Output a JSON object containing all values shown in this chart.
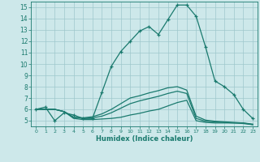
{
  "xlabel": "Humidex (Indice chaleur)",
  "xlim": [
    -0.5,
    23.5
  ],
  "ylim": [
    4.5,
    15.5
  ],
  "yticks": [
    5,
    6,
    7,
    8,
    9,
    10,
    11,
    12,
    13,
    14,
    15
  ],
  "xticks": [
    0,
    1,
    2,
    3,
    4,
    5,
    6,
    7,
    8,
    9,
    10,
    11,
    12,
    13,
    14,
    15,
    16,
    17,
    18,
    19,
    20,
    21,
    22,
    23
  ],
  "background_color": "#cde8ea",
  "line_color": "#1a7a6e",
  "grid_color": "#9ec8cc",
  "lines": [
    {
      "x": [
        0,
        1,
        2,
        3,
        4,
        5,
        6,
        7,
        8,
        9,
        10,
        11,
        12,
        13,
        14,
        15,
        16,
        17,
        18,
        19,
        20,
        21,
        22,
        23
      ],
      "y": [
        6.0,
        6.2,
        5.0,
        5.7,
        5.5,
        5.2,
        5.2,
        7.5,
        9.8,
        11.1,
        12.0,
        12.9,
        13.3,
        12.6,
        13.9,
        15.2,
        15.2,
        14.2,
        11.5,
        8.5,
        8.0,
        7.3,
        6.0,
        5.2
      ],
      "marker": "+"
    },
    {
      "x": [
        0,
        1,
        2,
        3,
        4,
        5,
        6,
        7,
        8,
        9,
        10,
        11,
        12,
        13,
        14,
        15,
        16,
        17,
        18,
        19,
        20,
        21,
        22,
        23
      ],
      "y": [
        6.0,
        6.0,
        6.0,
        5.8,
        5.2,
        5.1,
        5.1,
        5.15,
        5.2,
        5.3,
        5.5,
        5.65,
        5.85,
        6.0,
        6.3,
        6.6,
        6.8,
        5.0,
        4.85,
        4.8,
        4.8,
        4.8,
        4.8,
        4.7
      ],
      "marker": null
    },
    {
      "x": [
        0,
        1,
        2,
        3,
        4,
        5,
        6,
        7,
        8,
        9,
        10,
        11,
        12,
        13,
        14,
        15,
        16,
        17,
        18,
        19,
        20,
        21,
        22,
        23
      ],
      "y": [
        6.0,
        6.0,
        6.0,
        5.8,
        5.3,
        5.2,
        5.25,
        5.4,
        5.7,
        6.1,
        6.5,
        6.75,
        6.95,
        7.15,
        7.4,
        7.6,
        7.4,
        5.2,
        4.95,
        4.9,
        4.85,
        4.8,
        4.75,
        4.65
      ],
      "marker": null
    },
    {
      "x": [
        0,
        1,
        2,
        3,
        4,
        5,
        6,
        7,
        8,
        9,
        10,
        11,
        12,
        13,
        14,
        15,
        16,
        17,
        18,
        19,
        20,
        21,
        22,
        23
      ],
      "y": [
        6.0,
        6.0,
        6.0,
        5.8,
        5.3,
        5.25,
        5.35,
        5.6,
        6.0,
        6.5,
        7.0,
        7.2,
        7.45,
        7.65,
        7.9,
        8.0,
        7.7,
        5.4,
        5.05,
        4.95,
        4.9,
        4.85,
        4.8,
        4.65
      ],
      "marker": null
    }
  ]
}
